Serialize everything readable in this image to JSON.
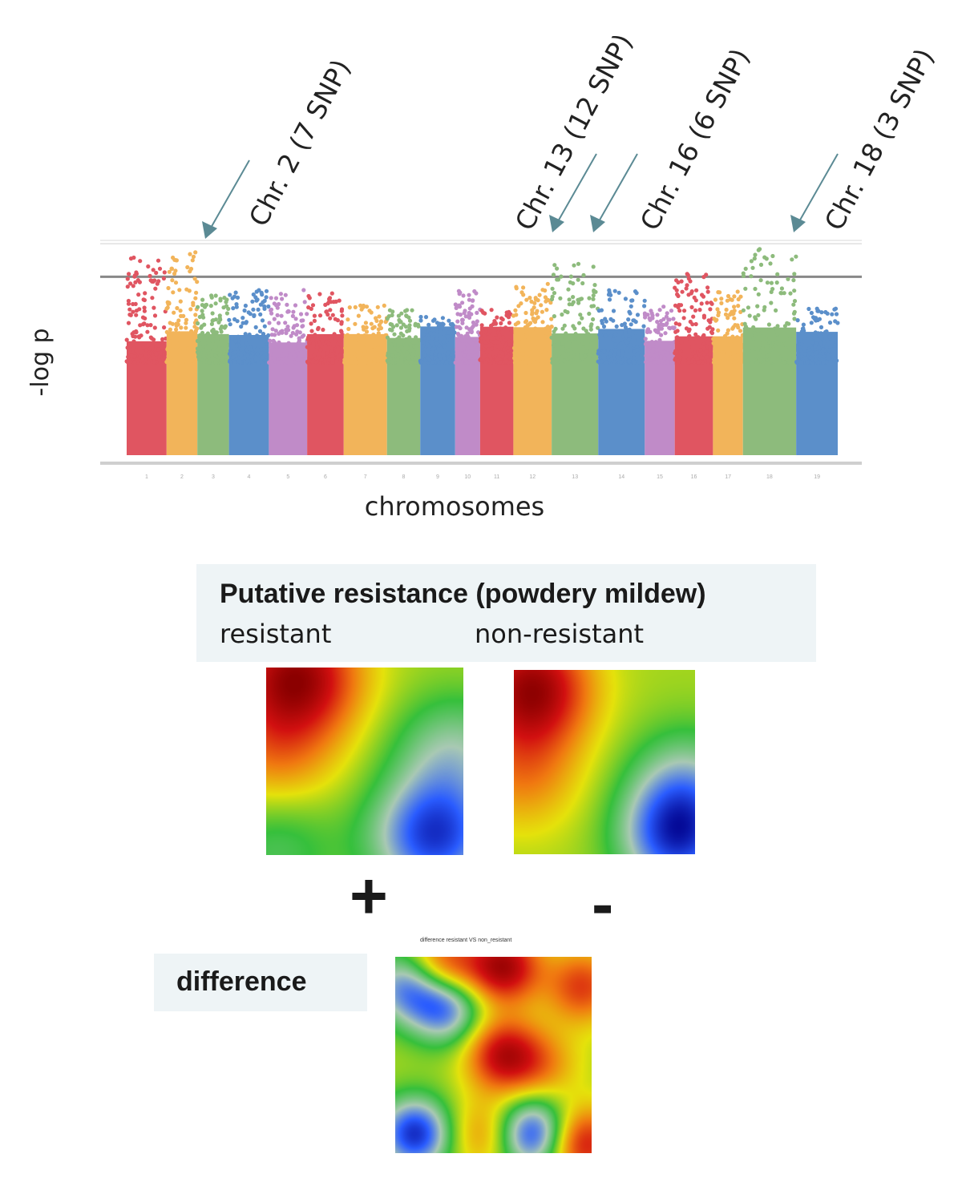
{
  "chart_data": [
    {
      "type": "scatter",
      "xlabel": "chromosomes",
      "ylabel": "-log p",
      "chromosomes": [
        1,
        2,
        3,
        4,
        5,
        6,
        7,
        8,
        9,
        10,
        11,
        12,
        13,
        14,
        15,
        16,
        17,
        18,
        19
      ],
      "chromosome_colors": [
        "#e05561",
        "#f2b45a",
        "#8dbb7c",
        "#5b8fca",
        "#c08bc8",
        "#e05561",
        "#f2b45a",
        "#8dbb7c",
        "#5b8fca",
        "#c08bc8",
        "#e05561",
        "#f2b45a",
        "#8dbb7c",
        "#5b8fca",
        "#c08bc8",
        "#e05561",
        "#f2b45a",
        "#8dbb7c",
        "#5b8fca"
      ],
      "ylim": [
        0,
        6.5
      ],
      "significance_thresholds": [
        5.4,
        6.4
      ],
      "annotations": [
        {
          "chromosome": 2,
          "text": "Chr. 2 (7 SNP)"
        },
        {
          "chromosome": 13,
          "text": "Chr. 13 (12 SNP)"
        },
        {
          "chromosome": 16,
          "text": "Chr. 16 (6 SNP)"
        },
        {
          "chromosome": 18,
          "text": "Chr. 18 (3 SNP)"
        }
      ],
      "arrow_color": "#5b8a94"
    },
    {
      "type": "heatmap",
      "name": "resistant",
      "colormap": [
        "#00008b",
        "#2a5cff",
        "#a9c9b4",
        "#36c03c",
        "#e5e20b",
        "#f07810",
        "#d21010",
        "#8b0000"
      ],
      "peaks": [
        {
          "x": 0.15,
          "y": 0.05,
          "v": 0.9
        },
        {
          "x": 0.05,
          "y": 0.45,
          "v": 0.35
        },
        {
          "x": 0.85,
          "y": 0.9,
          "v": -0.85
        },
        {
          "x": 0.95,
          "y": 0.45,
          "v": -0.4
        },
        {
          "x": 0.05,
          "y": 0.95,
          "v": -0.25
        }
      ]
    },
    {
      "type": "heatmap",
      "name": "non-resistant",
      "colormap": [
        "#00008b",
        "#2a5cff",
        "#a9c9b4",
        "#36c03c",
        "#e5e20b",
        "#f07810",
        "#d21010",
        "#8b0000"
      ],
      "peaks": [
        {
          "x": 0.1,
          "y": 0.1,
          "v": 0.9
        },
        {
          "x": 0.05,
          "y": 0.55,
          "v": 0.35
        },
        {
          "x": 0.9,
          "y": 0.9,
          "v": -0.85
        },
        {
          "x": 0.95,
          "y": 0.6,
          "v": -0.35
        }
      ]
    },
    {
      "type": "heatmap",
      "name": "difference",
      "colormap": [
        "#00008b",
        "#2a5cff",
        "#a9c9b4",
        "#36c03c",
        "#e5e20b",
        "#f07810",
        "#d21010",
        "#8b0000"
      ],
      "peaks": [
        {
          "x": 0.55,
          "y": 0.05,
          "v": 0.85
        },
        {
          "x": 0.25,
          "y": 0.05,
          "v": 0.6
        },
        {
          "x": 0.95,
          "y": 0.15,
          "v": 0.55
        },
        {
          "x": 0.55,
          "y": 0.5,
          "v": 0.75
        },
        {
          "x": 0.95,
          "y": 0.95,
          "v": 0.7
        },
        {
          "x": 0.05,
          "y": 0.15,
          "v": -0.6
        },
        {
          "x": 0.25,
          "y": 0.25,
          "v": -0.75
        },
        {
          "x": 0.1,
          "y": 0.9,
          "v": -0.9
        },
        {
          "x": 0.7,
          "y": 0.9,
          "v": -0.85
        },
        {
          "x": 0.45,
          "y": 0.9,
          "v": 0.35
        },
        {
          "x": 0.75,
          "y": 0.55,
          "v": 0.3
        }
      ]
    }
  ],
  "panel": {
    "title": "Putative resistance (powdery mildew)",
    "resistant_label": "resistant",
    "non_resistant_label": "non-resistant",
    "plus_sign": "+",
    "minus_sign": "-",
    "difference_label": "difference",
    "difference_title": "difference resistant VS non_resistant"
  }
}
